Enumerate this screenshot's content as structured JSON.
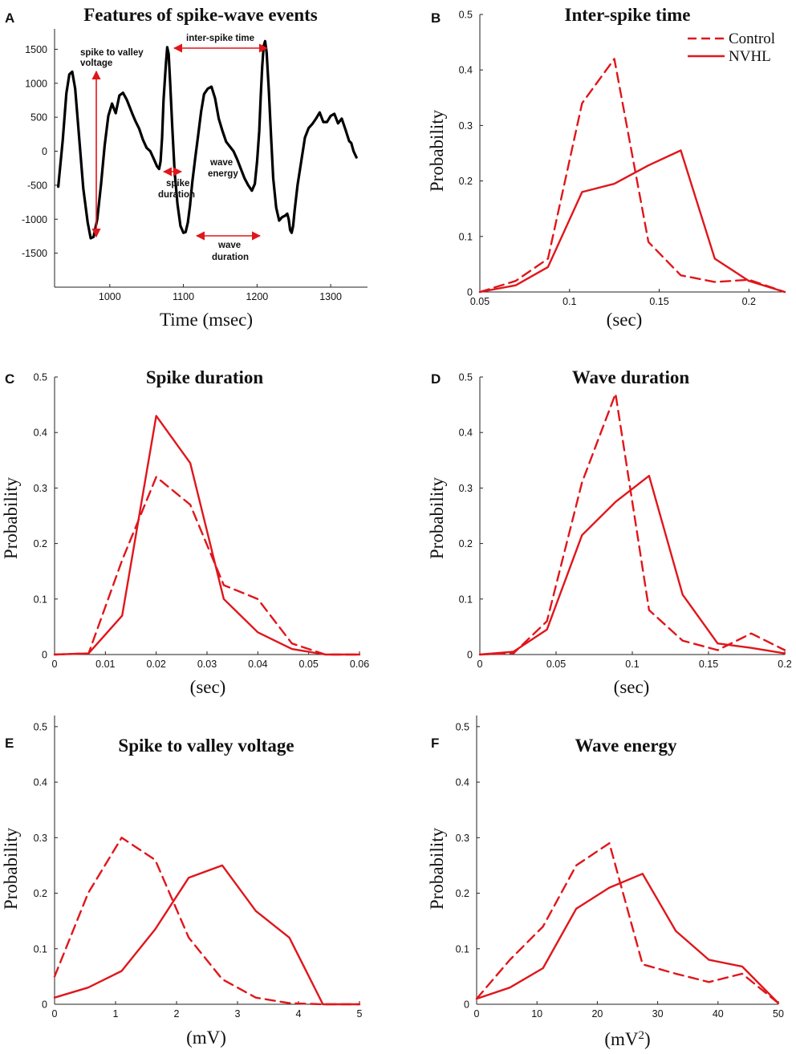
{
  "figure": {
    "colors": {
      "series": "#e0161b",
      "trace": "#000000",
      "axis": "#222222"
    },
    "legend": {
      "entries": [
        {
          "name": "Control",
          "style": "dashed"
        },
        {
          "name": "NVHL",
          "style": "solid"
        }
      ],
      "location": "top-right of panel B"
    }
  },
  "chart_data": [
    {
      "id": "A",
      "letter": "A",
      "type": "line",
      "title": "Features of spike-wave events",
      "xlabel": "Time (msec)",
      "ylabel": "",
      "xlim": [
        925,
        1350
      ],
      "ylim": [
        -2000,
        1800
      ],
      "xticks": [
        1000,
        1100,
        1200,
        1300
      ],
      "yticks": [
        -1500,
        -1000,
        -500,
        0,
        500,
        1000,
        1500
      ],
      "series": [
        {
          "name": "EEG trace",
          "x": [
            930,
            936,
            941,
            945,
            949,
            953,
            958,
            964,
            970,
            974,
            978,
            983,
            988,
            993,
            998,
            1003,
            1008,
            1013,
            1018,
            1023,
            1027,
            1031,
            1035,
            1040,
            1045,
            1050,
            1055,
            1060,
            1064,
            1067,
            1069,
            1071,
            1073,
            1076,
            1078,
            1080,
            1082,
            1085,
            1088,
            1092,
            1096,
            1100,
            1103,
            1106,
            1109,
            1112,
            1116,
            1120,
            1124,
            1128,
            1133,
            1138,
            1143,
            1148,
            1153,
            1158,
            1163,
            1168,
            1173,
            1178,
            1183,
            1188,
            1193,
            1197,
            1200,
            1203,
            1205,
            1207,
            1209,
            1211,
            1213,
            1216,
            1219,
            1222,
            1226,
            1230,
            1234,
            1238,
            1241,
            1243,
            1245,
            1247,
            1249,
            1251,
            1255,
            1260,
            1265,
            1270,
            1275,
            1280,
            1285,
            1290,
            1295,
            1300,
            1305,
            1310,
            1315,
            1320,
            1325,
            1328,
            1331,
            1335
          ],
          "y": [
            -520,
            150,
            850,
            1130,
            1170,
            920,
            250,
            -550,
            -1050,
            -1280,
            -1260,
            -1000,
            -500,
            80,
            520,
            700,
            560,
            820,
            860,
            760,
            650,
            540,
            440,
            330,
            170,
            50,
            0,
            -120,
            -220,
            -260,
            -150,
            200,
            750,
            1260,
            1530,
            1430,
            1000,
            330,
            -300,
            -780,
            -1100,
            -1200,
            -1190,
            -1050,
            -800,
            -460,
            -100,
            230,
            580,
            840,
            920,
            950,
            780,
            480,
            300,
            140,
            70,
            0,
            -120,
            -260,
            -400,
            -500,
            -580,
            -480,
            -150,
            300,
            800,
            1250,
            1550,
            1620,
            1450,
            900,
            220,
            -400,
            -830,
            -1020,
            -970,
            -950,
            -920,
            -1000,
            -1160,
            -1200,
            -1100,
            -870,
            -500,
            -150,
            200,
            340,
            400,
            480,
            570,
            430,
            430,
            520,
            550,
            410,
            480,
            320,
            150,
            120,
            0,
            -90
          ]
        }
      ],
      "annotations": [
        "spike to valley voltage",
        "inter-spike time",
        "spike duration",
        "wave energy",
        "wave duration"
      ]
    },
    {
      "id": "B",
      "letter": "B",
      "type": "line",
      "title": "Inter-spike time",
      "xlabel": "(sec)",
      "ylabel": "Probability",
      "xlim": [
        0.05,
        0.22
      ],
      "ylim": [
        0,
        0.5
      ],
      "xticks": [
        0.05,
        0.1,
        0.15,
        0.2
      ],
      "yticks": [
        0,
        0.1,
        0.2,
        0.3,
        0.4,
        0.5
      ],
      "series": [
        {
          "name": "Control",
          "style": "dashed",
          "x": [
            0.05,
            0.07,
            0.088,
            0.107,
            0.125,
            0.144,
            0.162,
            0.181,
            0.2,
            0.22
          ],
          "y": [
            0,
            0.02,
            0.06,
            0.34,
            0.42,
            0.09,
            0.03,
            0.018,
            0.022,
            0
          ]
        },
        {
          "name": "NVHL",
          "style": "solid",
          "x": [
            0.05,
            0.07,
            0.088,
            0.107,
            0.125,
            0.144,
            0.162,
            0.181,
            0.2,
            0.22
          ],
          "y": [
            0,
            0.012,
            0.045,
            0.18,
            0.195,
            0.228,
            0.255,
            0.06,
            0.02,
            0
          ]
        }
      ]
    },
    {
      "id": "C",
      "letter": "C",
      "type": "line",
      "title": "Spike duration",
      "xlabel": "(sec)",
      "ylabel": "Probability",
      "xlim": [
        0,
        0.06
      ],
      "ylim": [
        0,
        0.5
      ],
      "xticks": [
        0,
        0.01,
        0.02,
        0.03,
        0.04,
        0.05,
        0.06
      ],
      "yticks": [
        0,
        0.1,
        0.2,
        0.3,
        0.4,
        0.5
      ],
      "series": [
        {
          "name": "Control",
          "style": "dashed",
          "x": [
            0,
            0.0067,
            0.0133,
            0.02,
            0.0267,
            0.0333,
            0.04,
            0.0467,
            0.0533,
            0.06
          ],
          "y": [
            0,
            0.002,
            0.17,
            0.32,
            0.27,
            0.125,
            0.1,
            0.02,
            0,
            0
          ]
        },
        {
          "name": "NVHL",
          "style": "solid",
          "x": [
            0,
            0.0067,
            0.0133,
            0.02,
            0.0267,
            0.0333,
            0.04,
            0.0467,
            0.0533,
            0.06
          ],
          "y": [
            0,
            0.002,
            0.07,
            0.43,
            0.345,
            0.1,
            0.04,
            0.01,
            0,
            0
          ]
        }
      ]
    },
    {
      "id": "D",
      "letter": "D",
      "type": "line",
      "title": "Wave duration",
      "xlabel": "(sec)",
      "ylabel": "Probability",
      "xlim": [
        0,
        0.2
      ],
      "ylim": [
        0,
        0.5
      ],
      "xticks": [
        0,
        0.05,
        0.1,
        0.15,
        0.2
      ],
      "yticks": [
        0,
        0.1,
        0.2,
        0.3,
        0.4,
        0.5
      ],
      "series": [
        {
          "name": "Control",
          "style": "dashed",
          "x": [
            0,
            0.022,
            0.044,
            0.067,
            0.089,
            0.111,
            0.133,
            0.156,
            0.178,
            0.2
          ],
          "y": [
            0,
            0.002,
            0.06,
            0.31,
            0.47,
            0.08,
            0.025,
            0.008,
            0.038,
            0.008
          ]
        },
        {
          "name": "NVHL",
          "style": "solid",
          "x": [
            0,
            0.022,
            0.044,
            0.067,
            0.089,
            0.111,
            0.133,
            0.156,
            0.178,
            0.2
          ],
          "y": [
            0,
            0.005,
            0.045,
            0.215,
            0.275,
            0.322,
            0.108,
            0.02,
            0.012,
            0.002
          ]
        }
      ]
    },
    {
      "id": "E",
      "letter": "E",
      "type": "line",
      "title": "Spike to valley voltage",
      "xlabel": "(mV)",
      "ylabel": "Probability",
      "xlim": [
        0,
        5
      ],
      "ylim": [
        0,
        0.52
      ],
      "xticks": [
        0,
        1,
        2,
        3,
        4,
        5
      ],
      "yticks": [
        0,
        0.1,
        0.2,
        0.3,
        0.4,
        0.5
      ],
      "series": [
        {
          "name": "Control",
          "style": "dashed",
          "x": [
            0,
            0.55,
            1.1,
            1.65,
            2.2,
            2.75,
            3.3,
            3.85,
            4.4,
            5.0
          ],
          "y": [
            0.05,
            0.2,
            0.3,
            0.26,
            0.12,
            0.045,
            0.012,
            0.002,
            0,
            0
          ]
        },
        {
          "name": "NVHL",
          "style": "solid",
          "x": [
            0,
            0.55,
            1.1,
            1.65,
            2.2,
            2.75,
            3.3,
            3.85,
            4.4,
            5.0
          ],
          "y": [
            0.012,
            0.03,
            0.06,
            0.135,
            0.228,
            0.25,
            0.168,
            0.12,
            0,
            0
          ]
        }
      ]
    },
    {
      "id": "F",
      "letter": "F",
      "type": "line",
      "title": "Wave energy",
      "xlabel": "(mV",
      "xlabel_sup": "2",
      "xlabel_end": ")",
      "ylabel": "Probability",
      "xlim": [
        0,
        50
      ],
      "ylim": [
        0,
        0.52
      ],
      "xticks": [
        0,
        10,
        20,
        30,
        40,
        50
      ],
      "yticks": [
        0,
        0.1,
        0.2,
        0.3,
        0.4,
        0.5
      ],
      "series": [
        {
          "name": "Control",
          "style": "dashed",
          "x": [
            0,
            5.5,
            11,
            16.5,
            22,
            27.5,
            33,
            38.5,
            44,
            50
          ],
          "y": [
            0.01,
            0.08,
            0.14,
            0.25,
            0.29,
            0.072,
            0.055,
            0.04,
            0.055,
            0.002
          ]
        },
        {
          "name": "NVHL",
          "style": "solid",
          "x": [
            0,
            5.5,
            11,
            16.5,
            22,
            27.5,
            33,
            38.5,
            44,
            50
          ],
          "y": [
            0.01,
            0.03,
            0.065,
            0.172,
            0.21,
            0.235,
            0.132,
            0.08,
            0.068,
            0.002
          ]
        }
      ]
    }
  ]
}
